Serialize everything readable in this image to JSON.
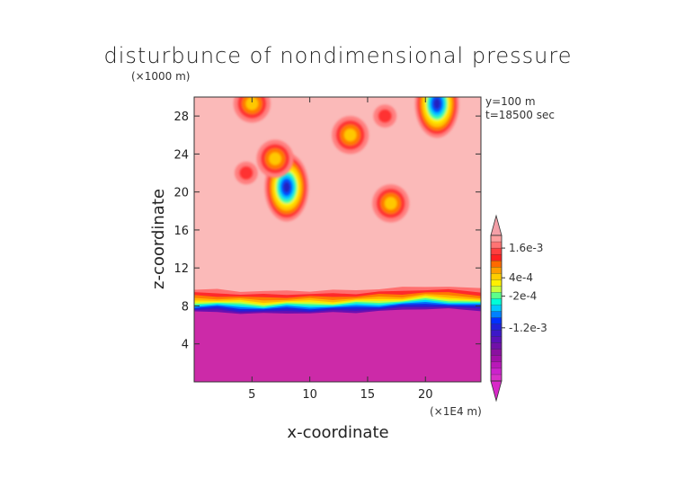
{
  "chart_data": {
    "type": "heatmap",
    "title": "disturbunce of nondimensional pressure",
    "xlabel": "x-coordinate",
    "ylabel": "z-coordinate",
    "x_unit": "(×1E4 m)",
    "y_unit": "(×1000 m)",
    "annotations": [
      "y=100 m",
      "t=18500 sec"
    ],
    "xlim": [
      0,
      24.8
    ],
    "ylim": [
      0,
      30
    ],
    "x_ticks": [
      5,
      10,
      15,
      20
    ],
    "y_ticks": [
      4,
      8,
      12,
      16,
      20,
      24,
      28
    ],
    "colorbar": {
      "labels": [
        {
          "text": "1.6e-3",
          "value": 0.0016
        },
        {
          "text": "4e-4",
          "value": 0.0004
        },
        {
          "text": "-2e-4",
          "value": -0.0002
        },
        {
          "text": "-1.2e-3",
          "value": -0.0012
        }
      ],
      "levels": [
        {
          "color": "#ff9f9f"
        },
        {
          "color": "#ff7373"
        },
        {
          "color": "#ff3f3f"
        },
        {
          "color": "#ff2020"
        },
        {
          "color": "#ff6a00"
        },
        {
          "color": "#ff9e00"
        },
        {
          "color": "#ffce00"
        },
        {
          "color": "#fff000"
        },
        {
          "color": "#c8ff3c"
        },
        {
          "color": "#5cff8a"
        },
        {
          "color": "#00ffd8"
        },
        {
          "color": "#00c8ff"
        },
        {
          "color": "#0080ff"
        },
        {
          "color": "#0030ff"
        },
        {
          "color": "#2020d8"
        },
        {
          "color": "#3c18c8"
        },
        {
          "color": "#5a10b8"
        },
        {
          "color": "#7010a8"
        },
        {
          "color": "#8a10a0"
        },
        {
          "color": "#a010a8"
        },
        {
          "color": "#b818b8"
        },
        {
          "color": "#cc22cc"
        },
        {
          "color": "#d830c8"
        }
      ],
      "top_color": "#f4a0a8",
      "bottom_color": "#d828c8"
    },
    "background_color": "#fbbab9",
    "lower_layer_color": "#cc2aa8",
    "boundary_layer": {
      "x": [
        0,
        2,
        4,
        6,
        8,
        10,
        12,
        14,
        16,
        18,
        20,
        22,
        24.8
      ],
      "z_top": [
        9.7,
        9.7,
        9.6,
        9.5,
        9.6,
        9.6,
        9.6,
        9.7,
        9.8,
        9.9,
        10.1,
        10.0,
        9.8
      ]
    },
    "patches": [
      {
        "x": 8.0,
        "z": 20.5,
        "intensity": "high"
      },
      {
        "x": 7.0,
        "z": 23.5,
        "intensity": "medium"
      },
      {
        "x": 4.5,
        "z": 22.0,
        "intensity": "low"
      },
      {
        "x": 5.0,
        "z": 29.3,
        "intensity": "medium"
      },
      {
        "x": 13.5,
        "z": 26.0,
        "intensity": "medium"
      },
      {
        "x": 17.0,
        "z": 18.8,
        "intensity": "medium"
      },
      {
        "x": 21.0,
        "z": 29.3,
        "intensity": "high"
      },
      {
        "x": 16.5,
        "z": 28.0,
        "intensity": "low"
      }
    ]
  }
}
